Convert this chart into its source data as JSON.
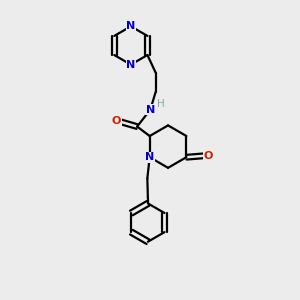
{
  "bg_color": "#ececec",
  "bond_color": "#000000",
  "n_color": "#0000cc",
  "o_color": "#cc2200",
  "h_color": "#7faaaa",
  "line_width": 1.6,
  "figsize": [
    3.0,
    3.0
  ],
  "dpi": 100,
  "xlim": [
    0,
    10
  ],
  "ylim": [
    0,
    10
  ]
}
